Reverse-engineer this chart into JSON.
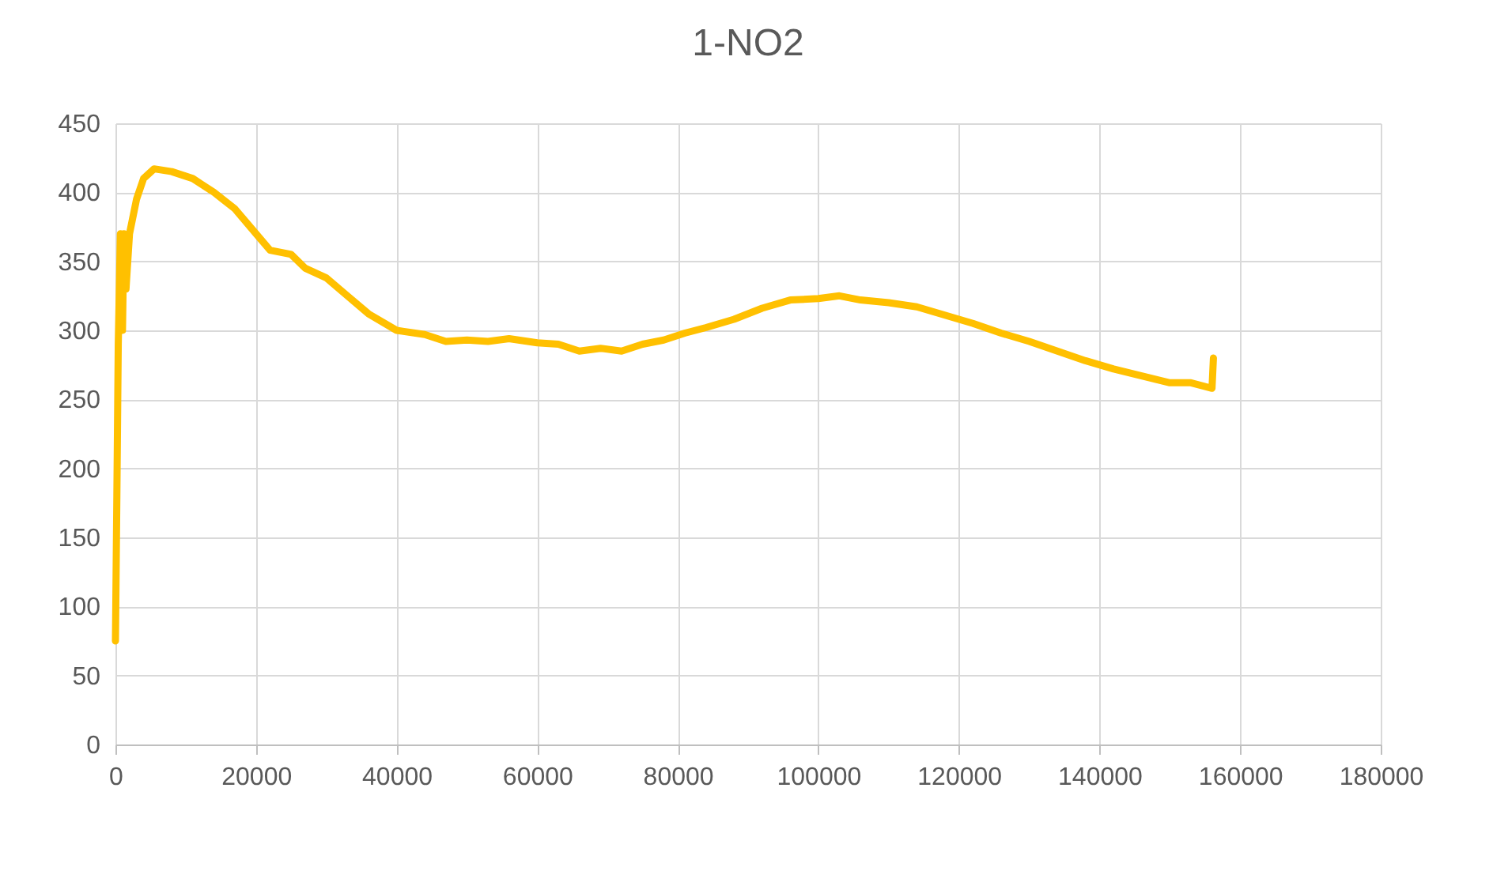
{
  "chart_data": {
    "type": "line",
    "title": "1-NO2",
    "xlim": [
      0,
      180000
    ],
    "xticks": [
      0,
      20000,
      40000,
      60000,
      80000,
      100000,
      120000,
      140000,
      160000,
      180000
    ],
    "ylim": [
      0,
      450
    ],
    "yticks": [
      0,
      50,
      100,
      150,
      200,
      250,
      300,
      350,
      400,
      450
    ],
    "grid": true,
    "marker": "none",
    "line_style": "solid",
    "series": [
      {
        "color": "#ffc000",
        "x": [
          0,
          200,
          400,
          700,
          1000,
          1200,
          1500,
          2000,
          3000,
          4000,
          5500,
          8000,
          11000,
          14000,
          17000,
          20000,
          22000,
          25000,
          27000,
          30000,
          33000,
          36000,
          40000,
          44000,
          47000,
          50000,
          53000,
          56000,
          60000,
          63000,
          66000,
          69000,
          72000,
          75000,
          78000,
          81000,
          84000,
          88000,
          92000,
          96000,
          100000,
          103000,
          106000,
          110000,
          114000,
          118000,
          122000,
          126000,
          130000,
          134000,
          138000,
          142000,
          146000,
          150000,
          153000,
          156000,
          156200
        ],
        "values": [
          75,
          180,
          290,
          370,
          300,
          370,
          330,
          370,
          395,
          410,
          417,
          415,
          410,
          400,
          388,
          370,
          358,
          355,
          345,
          338,
          325,
          312,
          300,
          297,
          292,
          293,
          292,
          294,
          291,
          290,
          285,
          287,
          285,
          290,
          293,
          298,
          302,
          308,
          316,
          322,
          323,
          325,
          322,
          320,
          317,
          311,
          305,
          298,
          292,
          285,
          278,
          272,
          267,
          262,
          262,
          258,
          280
        ]
      }
    ]
  }
}
